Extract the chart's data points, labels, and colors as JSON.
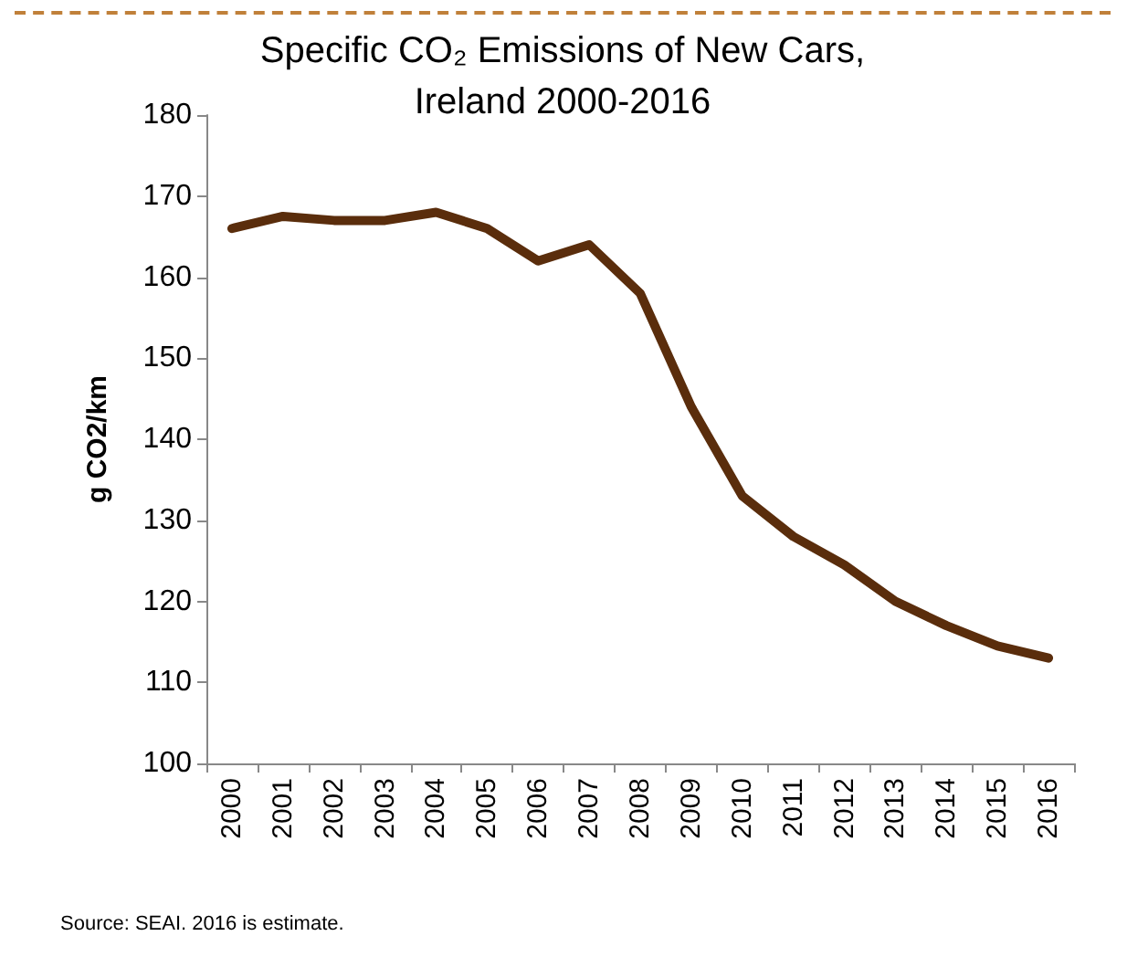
{
  "chart_data": {
    "type": "line",
    "title": "Specific CO₂ Emissions of New Cars, Ireland 2000-2016",
    "ylabel": "g CO2/km",
    "annotations": [
      "Source: SEAI. 2016 is estimate."
    ],
    "categories": [
      "2000",
      "2001",
      "2002",
      "2003",
      "2004",
      "2005",
      "2006",
      "2007",
      "2008",
      "2009",
      "2010",
      "2011",
      "2012",
      "2013",
      "2014",
      "2015",
      "2016"
    ],
    "series": [
      {
        "color": "#5a2d0c",
        "values": [
          166,
          167.5,
          167,
          167,
          168,
          166,
          162,
          164,
          158,
          144,
          133,
          128,
          124.5,
          120,
          117,
          114.5,
          113
        ]
      }
    ],
    "ylim": [
      100,
      180
    ],
    "yticks": [
      100,
      110,
      120,
      130,
      140,
      150,
      160,
      170,
      180
    ],
    "grid": false,
    "marker": "none",
    "line_style": "solid"
  }
}
